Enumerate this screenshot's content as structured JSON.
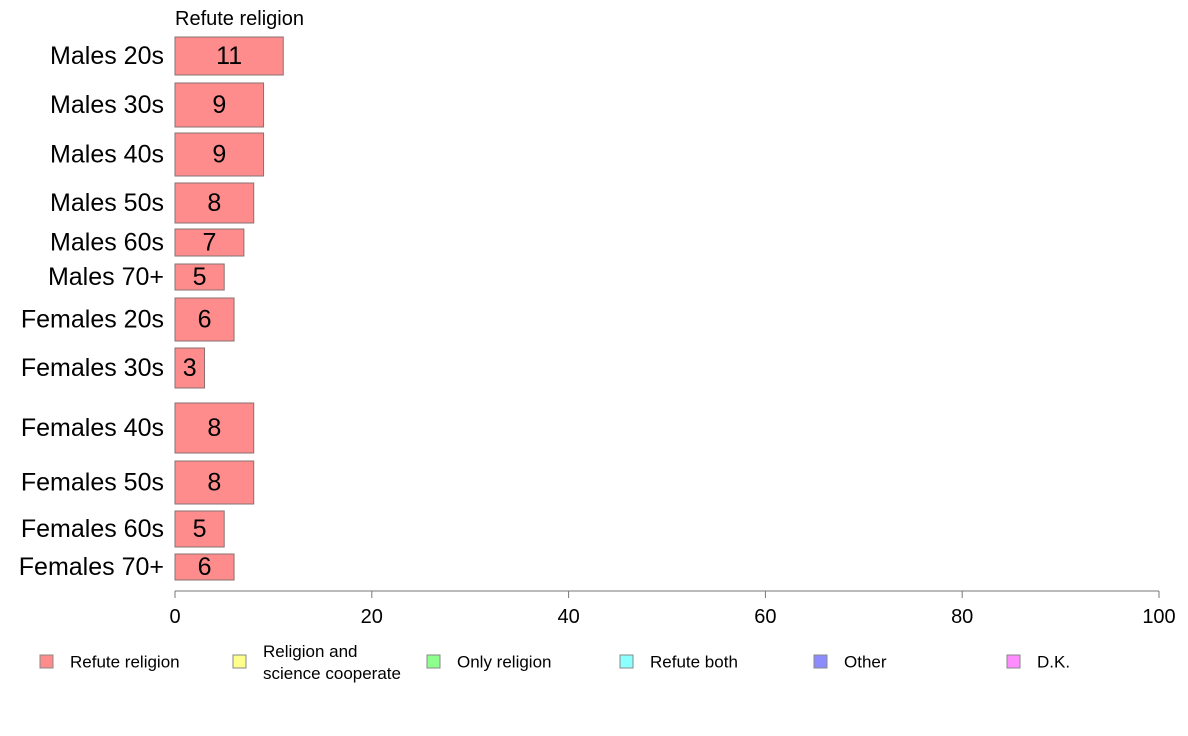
{
  "chart_data": {
    "type": "bar",
    "orientation": "horizontal",
    "title": "Refute religion",
    "categories": [
      "Males 20s",
      "Males 30s",
      "Males 40s",
      "Males 50s",
      "Males 60s",
      "Males 70+",
      "Females 20s",
      "Females 30s",
      "Females 40s",
      "Females 50s",
      "Females 60s",
      "Females 70+"
    ],
    "series": [
      {
        "name": "Refute religion",
        "color": "#ff8c8c",
        "values": [
          11,
          9,
          9,
          8,
          7,
          5,
          6,
          3,
          8,
          8,
          5,
          6
        ],
        "labels": [
          "11",
          "9",
          "9",
          "8",
          "7",
          "5",
          "6",
          "3",
          "8",
          "8",
          "5",
          "6"
        ]
      }
    ],
    "xlim": [
      0,
      100
    ],
    "xticks": [
      0,
      20,
      40,
      60,
      80,
      100
    ],
    "xtick_labels": [
      "0",
      "20",
      "40",
      "60",
      "80",
      "100"
    ],
    "grid": false,
    "legend_position": "bottom",
    "legend": [
      {
        "label": "Refute religion",
        "color": "#ff8c8c"
      },
      {
        "label": "Religion and\nscience cooperate",
        "color": "#ffff8c"
      },
      {
        "label": "Only religion",
        "color": "#8cff8c"
      },
      {
        "label": "Refute both",
        "color": "#8cffff"
      },
      {
        "label": "Other",
        "color": "#8c8cff"
      },
      {
        "label": "D.K.",
        "color": "#ff8cff"
      }
    ]
  }
}
